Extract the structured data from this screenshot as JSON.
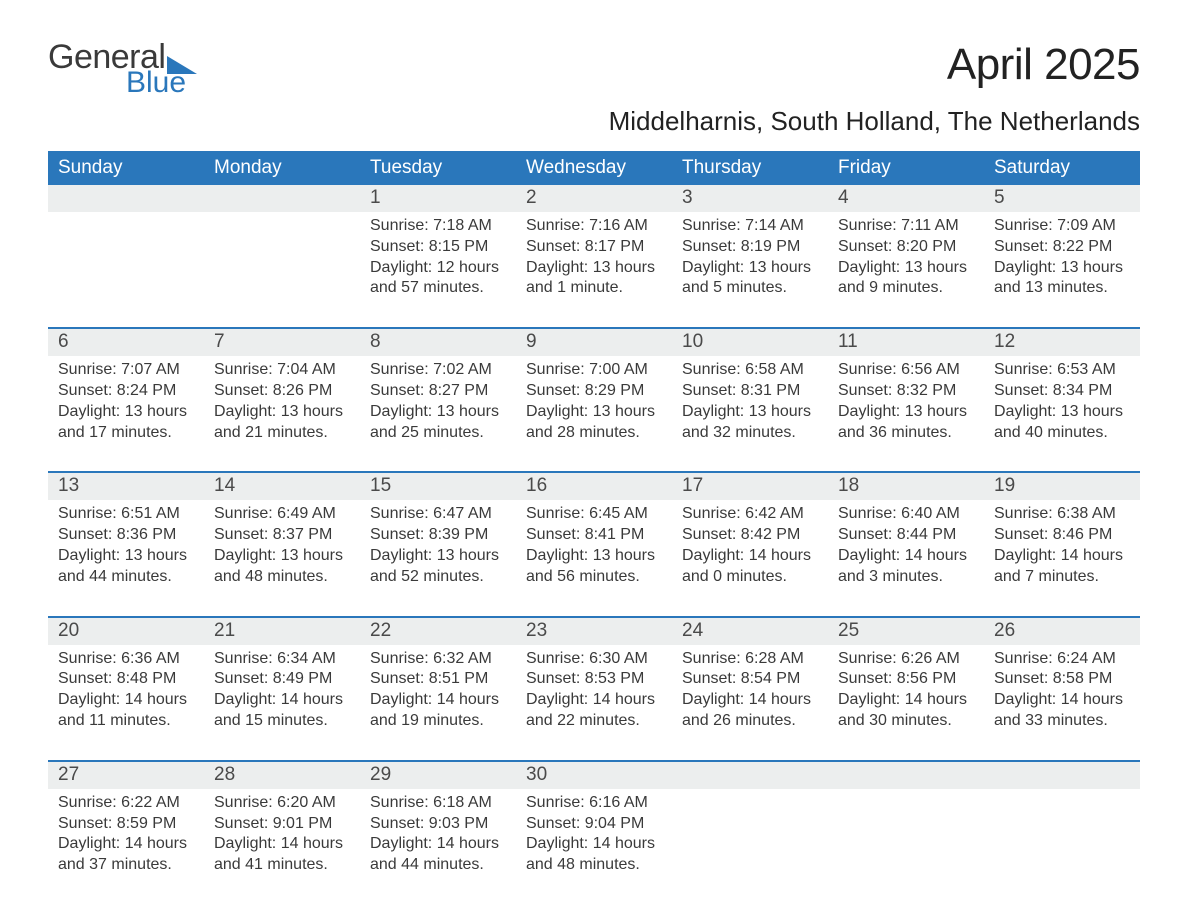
{
  "logo": {
    "word1": "General",
    "word2": "Blue",
    "color_dark": "#3a3a3a",
    "color_blue": "#2a77bb"
  },
  "title": "April 2025",
  "subtitle": "Middelharnis, South Holland, The Netherlands",
  "colors": {
    "header_bg": "#2a77bb",
    "header_text": "#ffffff",
    "daynum_bg": "#eceeee",
    "row_border": "#2a77bb",
    "body_text": "#3a3a3a",
    "page_bg": "#ffffff"
  },
  "fontsizes": {
    "title": 44,
    "subtitle": 26,
    "header": 19,
    "daynum": 19,
    "body": 16
  },
  "weekdays": [
    "Sunday",
    "Monday",
    "Tuesday",
    "Wednesday",
    "Thursday",
    "Friday",
    "Saturday"
  ],
  "weeks": [
    [
      {
        "day": ""
      },
      {
        "day": ""
      },
      {
        "day": "1",
        "sunrise": "7:18 AM",
        "sunset": "8:15 PM",
        "daylight": "12 hours and 57 minutes."
      },
      {
        "day": "2",
        "sunrise": "7:16 AM",
        "sunset": "8:17 PM",
        "daylight": "13 hours and 1 minute."
      },
      {
        "day": "3",
        "sunrise": "7:14 AM",
        "sunset": "8:19 PM",
        "daylight": "13 hours and 5 minutes."
      },
      {
        "day": "4",
        "sunrise": "7:11 AM",
        "sunset": "8:20 PM",
        "daylight": "13 hours and 9 minutes."
      },
      {
        "day": "5",
        "sunrise": "7:09 AM",
        "sunset": "8:22 PM",
        "daylight": "13 hours and 13 minutes."
      }
    ],
    [
      {
        "day": "6",
        "sunrise": "7:07 AM",
        "sunset": "8:24 PM",
        "daylight": "13 hours and 17 minutes."
      },
      {
        "day": "7",
        "sunrise": "7:04 AM",
        "sunset": "8:26 PM",
        "daylight": "13 hours and 21 minutes."
      },
      {
        "day": "8",
        "sunrise": "7:02 AM",
        "sunset": "8:27 PM",
        "daylight": "13 hours and 25 minutes."
      },
      {
        "day": "9",
        "sunrise": "7:00 AM",
        "sunset": "8:29 PM",
        "daylight": "13 hours and 28 minutes."
      },
      {
        "day": "10",
        "sunrise": "6:58 AM",
        "sunset": "8:31 PM",
        "daylight": "13 hours and 32 minutes."
      },
      {
        "day": "11",
        "sunrise": "6:56 AM",
        "sunset": "8:32 PM",
        "daylight": "13 hours and 36 minutes."
      },
      {
        "day": "12",
        "sunrise": "6:53 AM",
        "sunset": "8:34 PM",
        "daylight": "13 hours and 40 minutes."
      }
    ],
    [
      {
        "day": "13",
        "sunrise": "6:51 AM",
        "sunset": "8:36 PM",
        "daylight": "13 hours and 44 minutes."
      },
      {
        "day": "14",
        "sunrise": "6:49 AM",
        "sunset": "8:37 PM",
        "daylight": "13 hours and 48 minutes."
      },
      {
        "day": "15",
        "sunrise": "6:47 AM",
        "sunset": "8:39 PM",
        "daylight": "13 hours and 52 minutes."
      },
      {
        "day": "16",
        "sunrise": "6:45 AM",
        "sunset": "8:41 PM",
        "daylight": "13 hours and 56 minutes."
      },
      {
        "day": "17",
        "sunrise": "6:42 AM",
        "sunset": "8:42 PM",
        "daylight": "14 hours and 0 minutes."
      },
      {
        "day": "18",
        "sunrise": "6:40 AM",
        "sunset": "8:44 PM",
        "daylight": "14 hours and 3 minutes."
      },
      {
        "day": "19",
        "sunrise": "6:38 AM",
        "sunset": "8:46 PM",
        "daylight": "14 hours and 7 minutes."
      }
    ],
    [
      {
        "day": "20",
        "sunrise": "6:36 AM",
        "sunset": "8:48 PM",
        "daylight": "14 hours and 11 minutes."
      },
      {
        "day": "21",
        "sunrise": "6:34 AM",
        "sunset": "8:49 PM",
        "daylight": "14 hours and 15 minutes."
      },
      {
        "day": "22",
        "sunrise": "6:32 AM",
        "sunset": "8:51 PM",
        "daylight": "14 hours and 19 minutes."
      },
      {
        "day": "23",
        "sunrise": "6:30 AM",
        "sunset": "8:53 PM",
        "daylight": "14 hours and 22 minutes."
      },
      {
        "day": "24",
        "sunrise": "6:28 AM",
        "sunset": "8:54 PM",
        "daylight": "14 hours and 26 minutes."
      },
      {
        "day": "25",
        "sunrise": "6:26 AM",
        "sunset": "8:56 PM",
        "daylight": "14 hours and 30 minutes."
      },
      {
        "day": "26",
        "sunrise": "6:24 AM",
        "sunset": "8:58 PM",
        "daylight": "14 hours and 33 minutes."
      }
    ],
    [
      {
        "day": "27",
        "sunrise": "6:22 AM",
        "sunset": "8:59 PM",
        "daylight": "14 hours and 37 minutes."
      },
      {
        "day": "28",
        "sunrise": "6:20 AM",
        "sunset": "9:01 PM",
        "daylight": "14 hours and 41 minutes."
      },
      {
        "day": "29",
        "sunrise": "6:18 AM",
        "sunset": "9:03 PM",
        "daylight": "14 hours and 44 minutes."
      },
      {
        "day": "30",
        "sunrise": "6:16 AM",
        "sunset": "9:04 PM",
        "daylight": "14 hours and 48 minutes."
      },
      {
        "day": ""
      },
      {
        "day": ""
      },
      {
        "day": ""
      }
    ]
  ],
  "labels": {
    "sunrise": "Sunrise:",
    "sunset": "Sunset:",
    "daylight": "Daylight:"
  }
}
